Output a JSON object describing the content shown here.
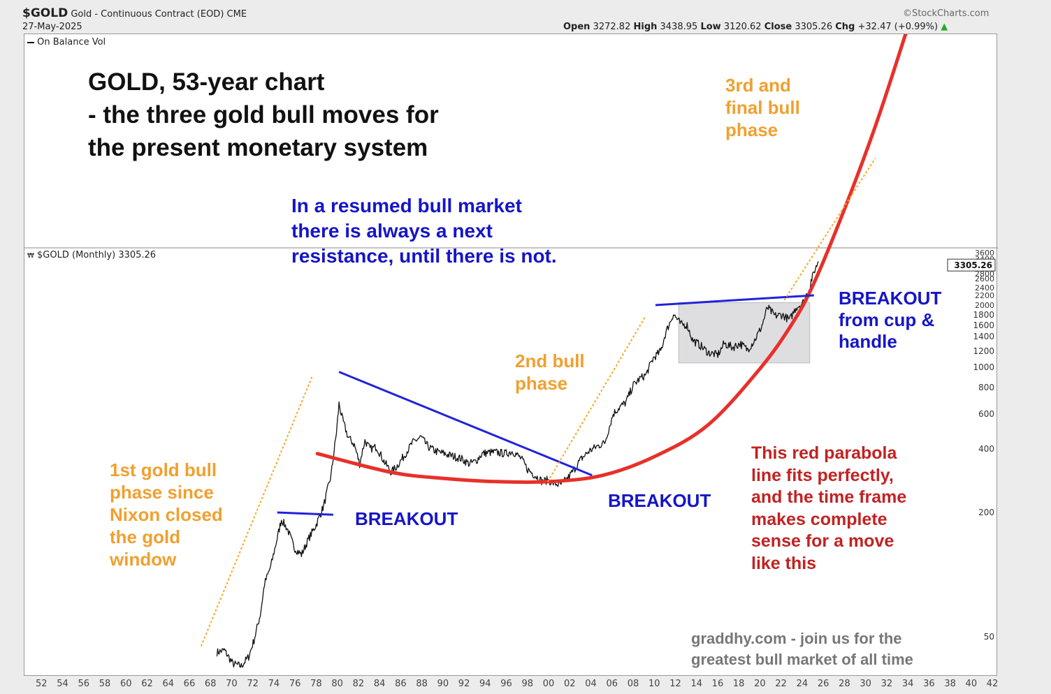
{
  "header": {
    "symbol": "$GOLD",
    "description": "Gold - Continuous Contract (EOD)",
    "exchange": "CME",
    "date": "27-May-2025",
    "source": "©StockCharts.com",
    "open_label": "Open",
    "open_value": "3272.82",
    "high_label": "High",
    "high_value": "3438.95",
    "low_label": "Low",
    "low_value": "3120.62",
    "close_label": "Close",
    "close_value": "3305.26",
    "chg_label": "Chg",
    "chg_value": "+32.47 (+0.99%)",
    "chg_arrow": "▲"
  },
  "panels": {
    "upper_indicator": "On Balance Vol",
    "price_panel_label": "$GOLD (Monthly) 3305.26",
    "last_price_tag": "3305.26"
  },
  "annotations": {
    "title_lines": [
      "GOLD, 53-year chart",
      "- the three gold bull moves for",
      "the present monetary system"
    ],
    "resumed_lines": [
      "In a resumed bull market",
      "there is always a next",
      "resistance, until there is not."
    ],
    "phase1_lines": [
      "1st gold bull",
      "phase since",
      "Nixon closed",
      "the gold",
      "window"
    ],
    "phase2_lines": [
      "2nd bull",
      "phase"
    ],
    "phase3_lines": [
      "3rd and",
      "final bull",
      "phase"
    ],
    "breakout1": "BREAKOUT",
    "breakout2": "BREAKOUT",
    "breakout3_lines": [
      "BREAKOUT",
      "from cup &",
      "handle"
    ],
    "parabola_lines": [
      "This red parabola",
      "line fits perfectly,",
      "and the time frame",
      "makes complete",
      "sense for a move",
      "like this"
    ],
    "footer_lines": [
      "graddhy.com - join us for the",
      "greatest bull market of all time"
    ]
  },
  "colors": {
    "price": "#111111",
    "parabola": "#e8302a",
    "resistance": "#2222dd",
    "phase_trend": "#f5a623",
    "consolidation_box": "#d8d8dc",
    "title": "#111111",
    "blue_text": "#1515c8",
    "orange_text": "#f0a030",
    "red_text": "#c22222",
    "footer_text": "#777777"
  },
  "chart_data": {
    "type": "line",
    "scale": "log",
    "x_axis": {
      "unit": "year",
      "range": [
        1950,
        2042
      ],
      "tick_labels": [
        "52",
        "54",
        "56",
        "58",
        "60",
        "62",
        "64",
        "66",
        "68",
        "70",
        "72",
        "74",
        "76",
        "78",
        "80",
        "82",
        "84",
        "86",
        "88",
        "90",
        "92",
        "94",
        "96",
        "98",
        "00",
        "02",
        "04",
        "06",
        "08",
        "10",
        "12",
        "14",
        "16",
        "18",
        "20",
        "22",
        "24",
        "26",
        "28",
        "30",
        "32",
        "34",
        "36",
        "38",
        "40",
        "42"
      ]
    },
    "y_axis": {
      "unit": "USD/oz",
      "tick_labels": [
        "3600",
        "3400",
        "3000",
        "2800",
        "2600",
        "2400",
        "2200",
        "2000",
        "1800",
        "1600",
        "1400",
        "1200",
        "1000",
        "800",
        "600",
        "400",
        "200",
        "50"
      ],
      "tick_values": [
        3600,
        3400,
        3000,
        2800,
        2600,
        2400,
        2200,
        2000,
        1800,
        1600,
        1400,
        1200,
        1000,
        800,
        600,
        400,
        200,
        50
      ]
    },
    "series": [
      {
        "x": [
          1968.5,
          1969.2,
          1970.0,
          1970.8,
          1971.5,
          1972.0,
          1972.6,
          1973.0,
          1973.6,
          1974.2,
          1974.6,
          1975.2,
          1975.8,
          1976.5,
          1977.2,
          1977.9,
          1978.6,
          1979.3,
          1979.8,
          1980.05,
          1980.4,
          1980.9,
          1981.5,
          1982.0,
          1982.5,
          1983.0,
          1983.6,
          1984.3,
          1985.0,
          1985.5,
          1986.2,
          1987.0,
          1987.8,
          1988.5,
          1989.2,
          1990.0,
          1990.8,
          1991.6,
          1992.4,
          1993.0,
          1993.6,
          1994.3,
          1995.0,
          1995.8,
          1996.5,
          1997.3,
          1997.9,
          1998.6,
          1999.3,
          1999.8,
          2000.4,
          2001.0,
          2001.7,
          2002.3,
          2003.0,
          2003.7,
          2004.4,
          2005.2,
          2006.0,
          2006.5,
          2007.2,
          2007.9,
          2008.5,
          2009.1,
          2009.8,
          2010.5,
          2011.0,
          2011.7,
          2012.4,
          2013.0,
          2013.5,
          2014.2,
          2015.0,
          2015.9,
          2016.5,
          2017.3,
          2018.0,
          2018.7,
          2019.4,
          2020.0,
          2020.6,
          2021.3,
          2022.0,
          2022.7,
          2023.3,
          2024.0,
          2024.6,
          2025.0,
          2025.41
        ],
        "y": [
          42,
          43,
          37,
          36,
          40,
          48,
          64,
          90,
          110,
          150,
          185,
          165,
          135,
          125,
          150,
          175,
          215,
          300,
          480,
          670,
          560,
          460,
          420,
          340,
          440,
          400,
          410,
          350,
          310,
          330,
          370,
          430,
          460,
          410,
          390,
          380,
          370,
          360,
          340,
          350,
          380,
          385,
          385,
          380,
          390,
          360,
          320,
          300,
          280,
          285,
          275,
          270,
          290,
          320,
          360,
          390,
          410,
          430,
          600,
          640,
          680,
          820,
          880,
          920,
          1110,
          1200,
          1480,
          1820,
          1620,
          1600,
          1350,
          1280,
          1180,
          1150,
          1300,
          1250,
          1300,
          1220,
          1350,
          1550,
          1950,
          1780,
          1800,
          1700,
          1950,
          2050,
          2400,
          2850,
          3305.26
        ]
      }
    ],
    "overlays": [
      {
        "kind": "parabola",
        "x": [
          1978,
          1985,
          1990,
          1995,
          2000,
          2005,
          2010,
          2015,
          2020,
          2023,
          2025,
          2028,
          2031,
          2034
        ],
        "y": [
          380,
          310,
          290,
          280,
          280,
          300,
          370,
          530,
          1000,
          1650,
          2500,
          5500,
          12000,
          29000
        ]
      },
      {
        "kind": "resistance",
        "x": [
          1980.05,
          2004
        ],
        "y": [
          950,
          300
        ]
      },
      {
        "kind": "resistance",
        "x": [
          1974.2,
          1979.5
        ],
        "y": [
          200,
          195
        ]
      },
      {
        "kind": "resistance",
        "x": [
          2010,
          2025
        ],
        "y": [
          2000,
          2200
        ]
      },
      {
        "kind": "phase_trend",
        "x": [
          1967,
          1977.5
        ],
        "y": [
          45,
          900
        ]
      },
      {
        "kind": "phase_trend",
        "x": [
          1999.8,
          2009
        ],
        "y": [
          280,
          1750
        ]
      },
      {
        "kind": "phase_trend",
        "x": [
          2022.2,
          2030.8
        ],
        "y": [
          2100,
          8500
        ]
      },
      {
        "kind": "consolidation_box",
        "x": [
          2012.2,
          2024.6
        ],
        "y": [
          1050,
          2050
        ]
      }
    ]
  }
}
